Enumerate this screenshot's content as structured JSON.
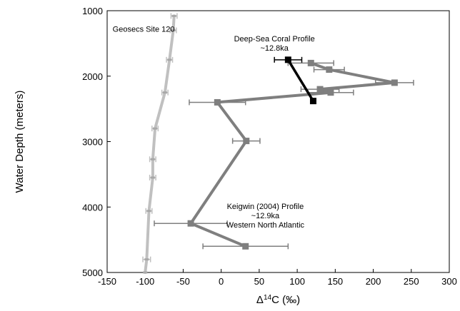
{
  "chart_data": {
    "type": "line",
    "xlabel_prefix": "Δ",
    "xlabel_superscript": "14",
    "xlabel_suffix": "C (‰)",
    "ylabel": "Water Depth (meters)",
    "xlim": [
      -150,
      300
    ],
    "ylim": [
      1000,
      5000
    ],
    "y_inverted": true,
    "grid": false,
    "x_ticks": [
      -150,
      -100,
      -50,
      0,
      50,
      100,
      150,
      200,
      250,
      300
    ],
    "y_ticks": [
      1000,
      2000,
      3000,
      4000,
      5000
    ],
    "series": [
      {
        "id": "geosecs",
        "color": "#c0c0c0",
        "marker": "dash",
        "points": [
          {
            "x": -62,
            "y": 1080,
            "err": 4
          },
          {
            "x": -63,
            "y": 1300,
            "err": 4
          },
          {
            "x": -68,
            "y": 1750,
            "err": 4
          },
          {
            "x": -74,
            "y": 2250,
            "err": 4
          },
          {
            "x": -87,
            "y": 2800,
            "err": 4
          },
          {
            "x": -90,
            "y": 3270,
            "err": 4
          },
          {
            "x": -90,
            "y": 3550,
            "err": 4
          },
          {
            "x": -95,
            "y": 4060,
            "err": 4
          },
          {
            "x": -98,
            "y": 4800,
            "err": 5
          },
          {
            "x": -100,
            "y": 5000,
            "err": 0
          }
        ]
      },
      {
        "id": "keigwin",
        "color": "#7f7f7f",
        "marker": "square",
        "points": [
          {
            "x": 118,
            "y": 1800,
            "err": 30
          },
          {
            "x": 142,
            "y": 1900,
            "err": 20
          },
          {
            "x": 228,
            "y": 2100,
            "err": 25
          },
          {
            "x": 130,
            "y": 2200,
            "err": 25
          },
          {
            "x": 144,
            "y": 2250,
            "err": 30
          },
          {
            "x": -5,
            "y": 2400,
            "err": 37
          },
          {
            "x": 33,
            "y": 2990,
            "err": 18
          },
          {
            "x": -40,
            "y": 4250,
            "err": 48
          },
          {
            "x": 32,
            "y": 4600,
            "err": 56
          }
        ]
      },
      {
        "id": "deep_sea_coral",
        "color": "#000000",
        "marker": "square",
        "points": [
          {
            "x": 88,
            "y": 1750,
            "err": 18
          },
          {
            "x": 121,
            "y": 2380,
            "err": 0
          }
        ]
      }
    ],
    "annotations": [
      {
        "id": "geosecs-label",
        "lines": [
          "Geosecs Site 120"
        ],
        "x": -102,
        "y": 1320,
        "anchor": "middle"
      },
      {
        "id": "coral-label",
        "lines": [
          "Deep-Sea Coral Profile",
          "~12.8ka"
        ],
        "x": 70,
        "y": 1470,
        "anchor": "middle"
      },
      {
        "id": "keigwin-label",
        "lines": [
          "Keigwin (2004) Profile",
          "~12.9ka",
          "Western North Atlantic"
        ],
        "x": 58,
        "y": 4030,
        "anchor": "middle"
      }
    ]
  }
}
